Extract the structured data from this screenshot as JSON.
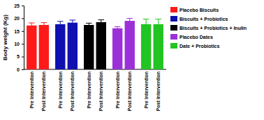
{
  "chart_data": {
    "type": "bar",
    "y_label": "Body weight (Kg)",
    "categories": [
      "Pre Intervention",
      "Post Intervention"
    ],
    "series": [
      {
        "name": "Placebo Biscuits",
        "color": "#ff1a1a",
        "values": [
          17.2,
          17.4
        ],
        "errors": [
          1.0,
          0.9
        ]
      },
      {
        "name": "Biscuits + Probiotics",
        "color": "#1010b0",
        "values": [
          17.7,
          18.3
        ],
        "errors": [
          1.1,
          1.0
        ]
      },
      {
        "name": "Biscuits + Probiotics + Inulin",
        "color": "#000000",
        "values": [
          17.4,
          18.5
        ],
        "errors": [
          0.7,
          0.9
        ]
      },
      {
        "name": "Placebo Dates",
        "color": "#9b30d9",
        "values": [
          16.1,
          19.0
        ],
        "errors": [
          0.6,
          1.0
        ]
      },
      {
        "name": "Date + Probiotics",
        "color": "#22c422",
        "values": [
          17.7,
          17.7
        ],
        "errors": [
          2.0,
          2.0
        ]
      }
    ],
    "ylim": [
      0,
      25
    ],
    "yticks": [
      0,
      5,
      10,
      15,
      20,
      25
    ]
  }
}
